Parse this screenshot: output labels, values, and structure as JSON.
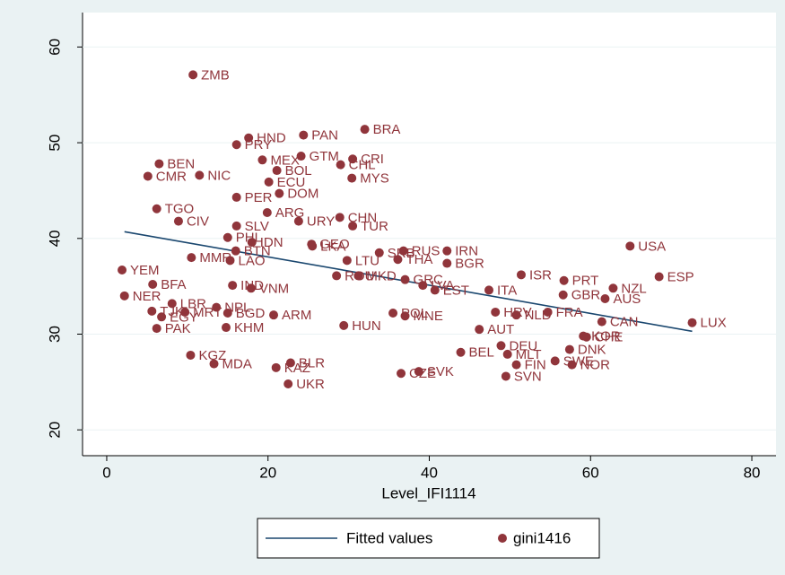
{
  "chart_data": {
    "type": "scatter",
    "x_label": "Level_IFI1114",
    "xlim": [
      -3,
      83
    ],
    "ylim": [
      17.3,
      63.6
    ],
    "xticks": [
      0,
      20,
      40,
      60,
      80
    ],
    "yticks": [
      20,
      30,
      40,
      50,
      60
    ],
    "series": [
      {
        "name": "Fitted values",
        "type": "line",
        "color": "#1a476f",
        "x": [
          2.2,
          72.6
        ],
        "values": [
          40.7,
          30.3
        ]
      },
      {
        "name": "gini1416",
        "type": "scatter",
        "color": "#90353b",
        "point_labels": [
          "ZMB",
          "HND",
          "PRY",
          "PAN",
          "BRA",
          "BEN",
          "CMR",
          "NIC",
          "MEX",
          "GTM",
          "CRI",
          "CHL",
          "BOL",
          "MYS",
          "ECU",
          "DOM",
          "PER",
          "TGO",
          "ARG",
          "CHN",
          "CIV",
          "URY",
          "TUR",
          "SLV",
          "PHL",
          "IDN",
          "USA",
          "LKA",
          "GEO",
          "BTN",
          "IRN",
          "RUS",
          "SRB",
          "MMR",
          "LAO",
          "THA",
          "LTU",
          "BGR",
          "YEM",
          "ISR",
          "ESP",
          "PRT",
          "ROU",
          "MKD",
          "BFA",
          "IND",
          "GRC",
          "VNM",
          "LVA",
          "NZL",
          "EST",
          "ITA",
          "GBR",
          "NER",
          "AUS",
          "LBR",
          "NPL",
          "TJK",
          "MRT",
          "BGD",
          "FRA",
          "POL",
          "MNE",
          "ARM",
          "HRV",
          "NLD",
          "EGY",
          "CAN",
          "LUX",
          "HUN",
          "PAK",
          "KHM",
          "AUT",
          "KOR",
          "CHE",
          "DEU",
          "BEL",
          "DNK",
          "MLT",
          "KGZ",
          "MDA",
          "BLR",
          "KAZ",
          "SWE",
          "FIN",
          "NOR",
          "SVK",
          "CZE",
          "SVN",
          "UKR"
        ],
        "x": [
          10.7,
          17.6,
          16.1,
          24.4,
          32.0,
          6.5,
          5.1,
          11.5,
          19.3,
          24.1,
          30.5,
          29.0,
          21.1,
          30.4,
          20.1,
          21.4,
          16.1,
          6.2,
          19.9,
          28.9,
          8.9,
          23.8,
          30.5,
          16.1,
          15.0,
          18.0,
          64.9,
          25.5,
          25.4,
          16.0,
          42.2,
          36.8,
          33.8,
          10.5,
          15.3,
          36.1,
          29.8,
          42.2,
          1.9,
          51.4,
          68.5,
          56.7,
          28.5,
          31.2,
          5.7,
          15.6,
          37.0,
          17.9,
          39.2,
          62.8,
          40.7,
          47.4,
          56.6,
          2.2,
          61.8,
          8.1,
          13.6,
          5.6,
          9.7,
          15.0,
          54.7,
          35.5,
          37.0,
          20.7,
          48.2,
          50.8,
          6.8,
          61.4,
          72.6,
          29.4,
          6.2,
          14.8,
          46.2,
          59.1,
          59.5,
          48.9,
          43.9,
          57.4,
          49.7,
          10.4,
          13.3,
          22.8,
          21.0,
          55.6,
          50.8,
          57.7,
          38.7,
          36.5,
          49.5,
          22.5
        ],
        "values": [
          57.1,
          50.5,
          49.8,
          50.8,
          51.4,
          47.8,
          46.5,
          46.6,
          48.2,
          48.6,
          48.3,
          47.7,
          47.1,
          46.3,
          45.9,
          44.7,
          44.3,
          43.1,
          42.7,
          42.2,
          41.8,
          41.8,
          41.3,
          41.3,
          40.1,
          39.6,
          39.2,
          39.2,
          39.4,
          38.7,
          38.7,
          38.7,
          38.5,
          38.0,
          37.7,
          37.8,
          37.7,
          37.4,
          36.7,
          36.2,
          36.0,
          35.6,
          36.1,
          36.1,
          35.2,
          35.1,
          35.7,
          34.8,
          35.1,
          34.8,
          34.6,
          34.6,
          34.1,
          34.0,
          33.7,
          33.2,
          32.8,
          32.4,
          32.3,
          32.2,
          32.3,
          32.2,
          31.9,
          32.0,
          32.3,
          32.0,
          31.8,
          31.3,
          31.2,
          30.9,
          30.6,
          30.7,
          30.5,
          29.8,
          29.7,
          28.8,
          28.1,
          28.4,
          27.9,
          27.8,
          26.9,
          27.0,
          26.5,
          27.2,
          26.8,
          26.8,
          26.1,
          25.9,
          25.6,
          24.8
        ]
      }
    ]
  }
}
